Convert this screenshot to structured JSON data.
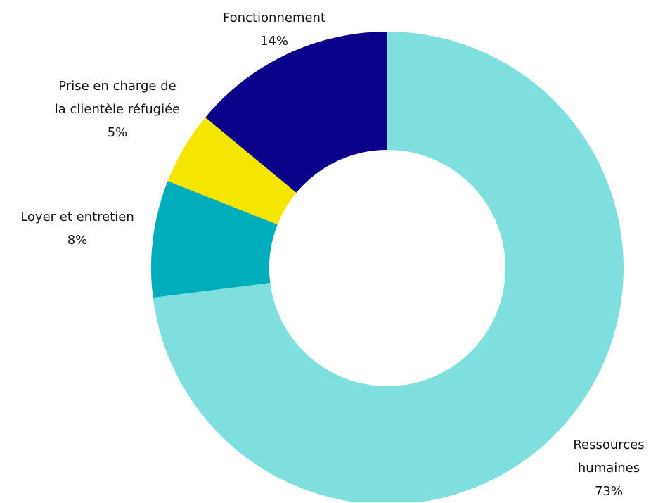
{
  "chart_data": {
    "type": "donut",
    "categories": [
      "Ressources\nhumaines",
      "Loyer et entretien",
      "Prise en charge de\nla clientèle réfugiée",
      "Fonctionnement"
    ],
    "values": [
      73,
      8,
      5,
      14
    ],
    "value_labels": [
      "73%",
      "8%",
      "5%",
      "14%"
    ],
    "colors": [
      "#7fdede",
      "#00adbb",
      "#f5e600",
      "#0a0089"
    ]
  }
}
